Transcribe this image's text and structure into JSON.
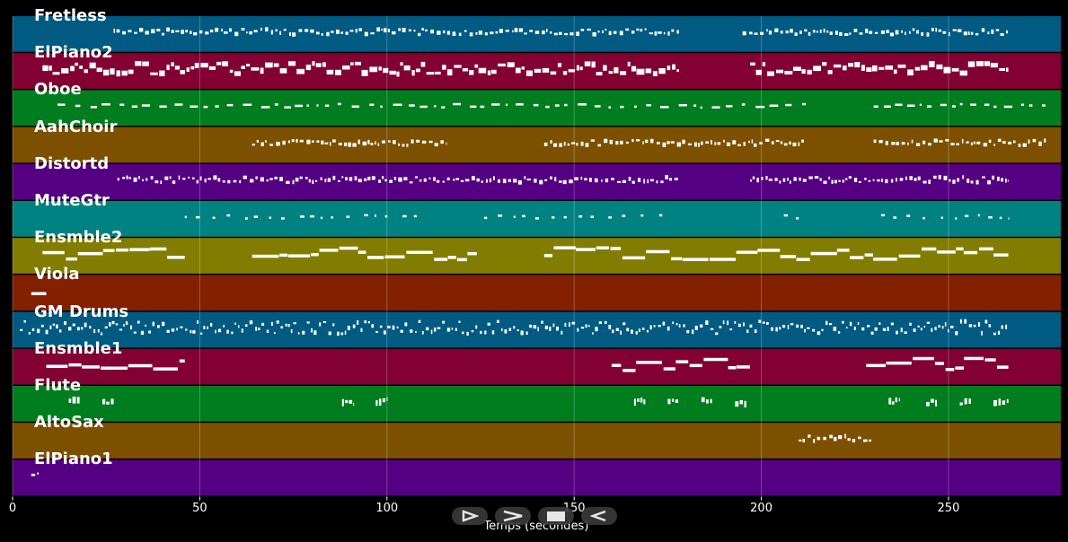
{
  "chart_data": {
    "type": "piano-roll",
    "xlabel": "Temps (secondes)",
    "xlim": [
      0,
      280
    ],
    "xticks": [
      0,
      50,
      100,
      150,
      200,
      250
    ],
    "grid": true,
    "tracks": [
      {
        "name": "Fretless",
        "color": "#005a82",
        "segments": [
          [
            27,
            178
          ],
          [
            195,
            266
          ]
        ],
        "style": "dense-small"
      },
      {
        "name": "ElPiano2",
        "color": "#820032",
        "segments": [
          [
            8,
            178
          ],
          [
            197,
            266
          ]
        ],
        "style": "dense-big"
      },
      {
        "name": "Oboe",
        "color": "#007d1e",
        "segments": [
          [
            12,
            212
          ],
          [
            230,
            276
          ]
        ],
        "style": "sparse-dash"
      },
      {
        "name": "AahChoir",
        "color": "#7d5000",
        "segments": [
          [
            64,
            116
          ],
          [
            142,
            212
          ],
          [
            230,
            276
          ]
        ],
        "style": "dense-small"
      },
      {
        "name": "Distortd",
        "color": "#550082",
        "segments": [
          [
            28,
            178
          ],
          [
            197,
            266
          ]
        ],
        "style": "dense-small"
      },
      {
        "name": "MuteGtr",
        "color": "#008282",
        "segments": [
          [
            46,
            110
          ],
          [
            126,
            176
          ],
          [
            206,
            210
          ],
          [
            232,
            266
          ]
        ],
        "style": "sparse"
      },
      {
        "name": "Ensmble2",
        "color": "#827d00",
        "segments": [
          [
            8,
            46
          ],
          [
            64,
            124
          ],
          [
            142,
            266
          ]
        ],
        "style": "long-notes"
      },
      {
        "name": "Viola",
        "color": "#822000",
        "segments": [
          [
            5,
            9
          ]
        ],
        "style": "long-notes"
      },
      {
        "name": "GM Drums",
        "color": "#005a82",
        "segments": [
          [
            2,
            266
          ]
        ],
        "style": "drums"
      },
      {
        "name": "Ensmble1",
        "color": "#820032",
        "segments": [
          [
            9,
            46
          ],
          [
            160,
            197
          ],
          [
            228,
            266
          ]
        ],
        "style": "long-notes"
      },
      {
        "name": "Flute",
        "color": "#007d1e",
        "segments": [
          [
            15,
            18
          ],
          [
            24,
            27
          ],
          [
            88,
            91
          ],
          [
            97,
            100
          ],
          [
            166,
            169
          ],
          [
            175,
            178
          ],
          [
            184,
            187
          ],
          [
            193,
            196
          ],
          [
            234,
            237
          ],
          [
            244,
            247
          ],
          [
            253,
            256
          ],
          [
            262,
            266
          ]
        ],
        "style": "clusters"
      },
      {
        "name": "AltoSax",
        "color": "#7d5000",
        "segments": [
          [
            210,
            230
          ]
        ],
        "style": "dense-small"
      },
      {
        "name": "ElPiano1",
        "color": "#550082",
        "segments": [
          [
            5,
            7
          ]
        ],
        "style": "dense-small"
      }
    ]
  },
  "controls": [
    {
      "name": "play",
      "icon": "play-icon"
    },
    {
      "name": "forward",
      "icon": "forward-icon"
    },
    {
      "name": "stop",
      "icon": "stop-icon"
    },
    {
      "name": "back",
      "icon": "back-icon"
    }
  ]
}
